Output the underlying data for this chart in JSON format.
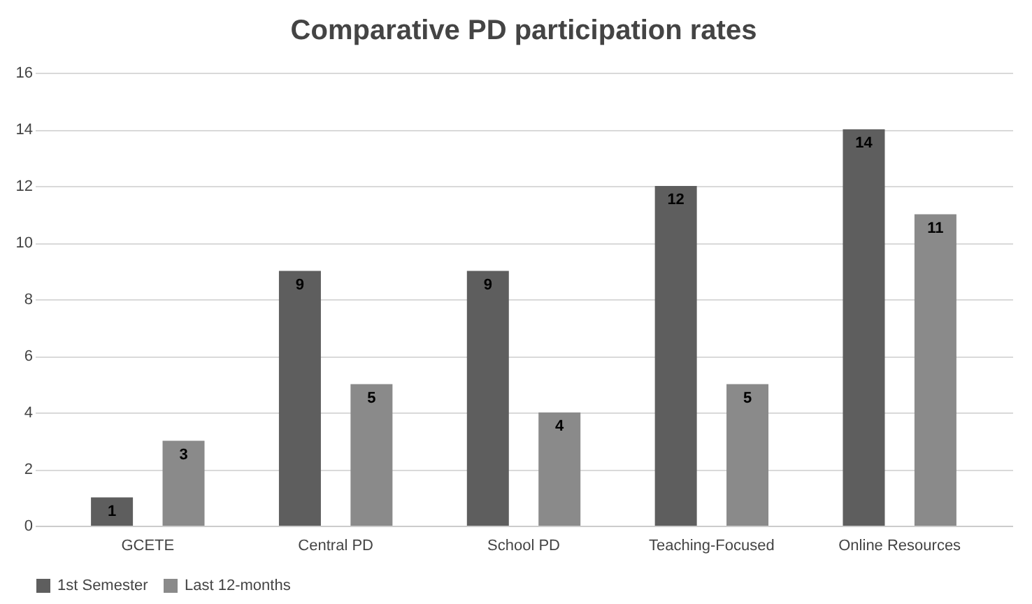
{
  "chart_data": {
    "type": "bar",
    "title": "Comparative PD participation rates",
    "categories": [
      "GCETE",
      "Central PD",
      "School PD",
      "Teaching-Focused",
      "Online Resources"
    ],
    "series": [
      {
        "name": "1st Semester",
        "color": "#5e5e5e",
        "values": [
          1,
          9,
          9,
          12,
          14
        ]
      },
      {
        "name": "Last 12-months",
        "color": "#8a8a8a",
        "values": [
          3,
          5,
          4,
          5,
          11
        ]
      }
    ],
    "ylim": [
      0,
      16
    ],
    "yticks": [
      0,
      2,
      4,
      6,
      8,
      10,
      12,
      14,
      16
    ],
    "grid": "y",
    "legend": "bottom",
    "data_labels": true
  }
}
